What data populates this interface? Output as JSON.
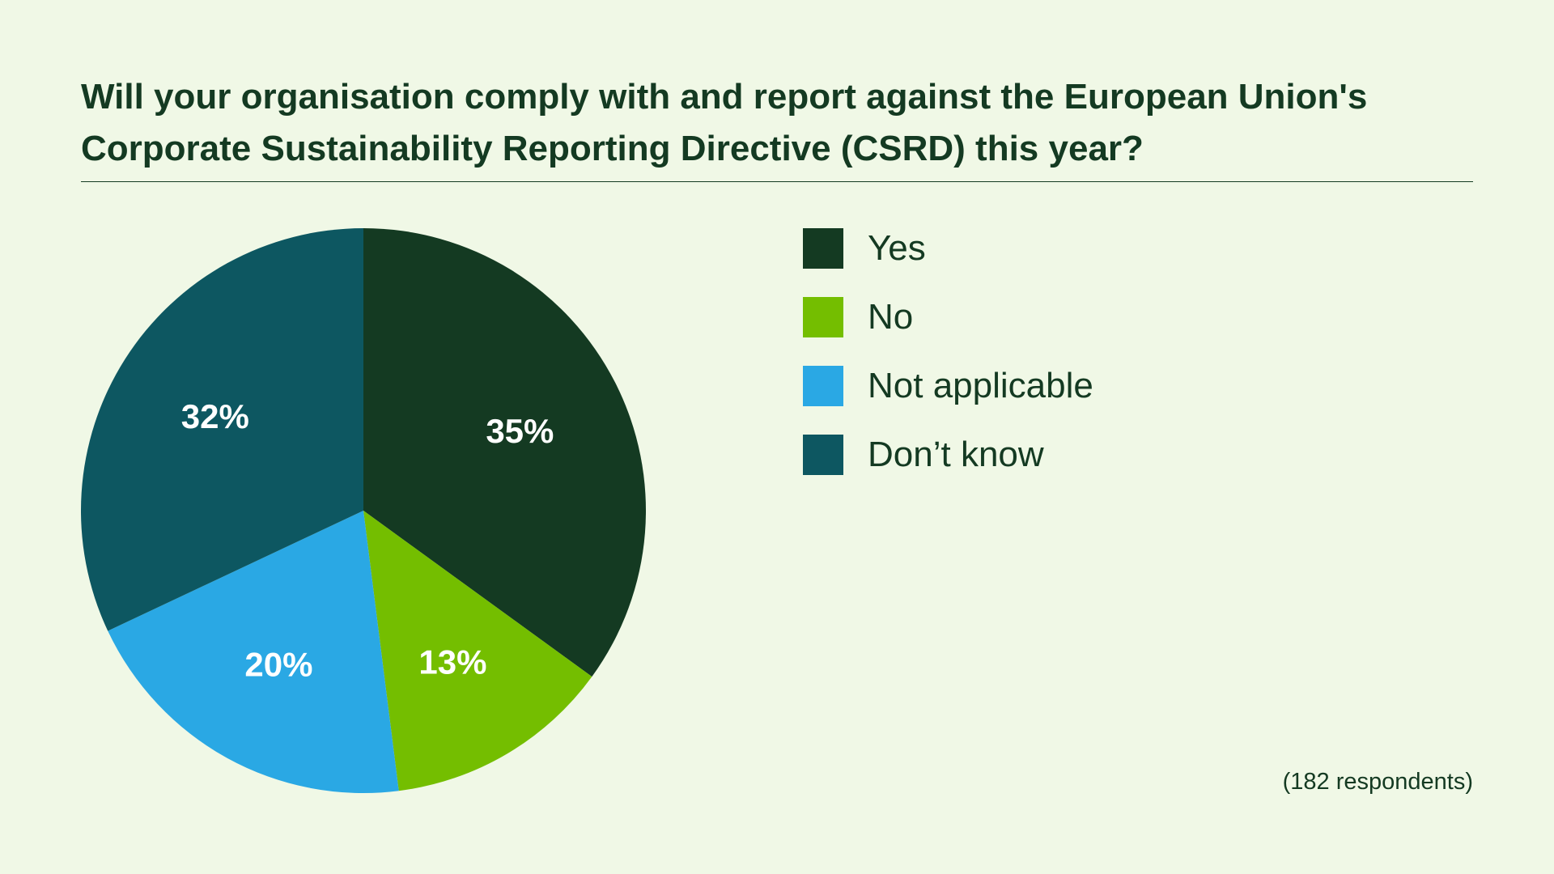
{
  "chart_data": {
    "type": "pie",
    "title": "Will your organisation comply with and report against the European Union's Corporate Sustainability Reporting Directive (CSRD) this year?",
    "slices": [
      {
        "label": "Yes",
        "value": 35,
        "display": "35%",
        "color": "#143a22"
      },
      {
        "label": "No",
        "value": 13,
        "display": "13%",
        "color": "#74be00"
      },
      {
        "label": "Not applicable",
        "value": 20,
        "display": "20%",
        "color": "#2aa8e4"
      },
      {
        "label": "Don’t know",
        "value": 32,
        "display": "32%",
        "color": "#0d5761"
      }
    ],
    "legend_position": "right",
    "note": "(182 respondents)"
  }
}
